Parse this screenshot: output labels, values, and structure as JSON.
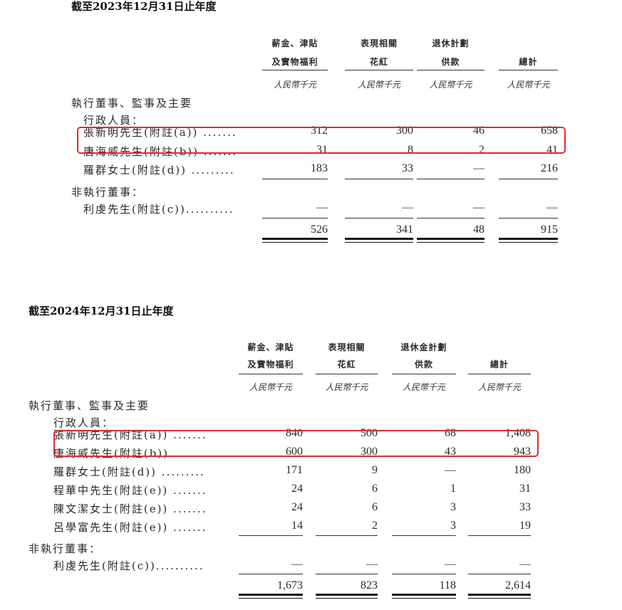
{
  "tables": [
    {
      "title": "截至2023年12月31日止年度",
      "headers": [
        {
          "line1": "薪金、津貼",
          "line2": "及實物福利"
        },
        {
          "line1": "表現相關",
          "line2": "花紅"
        },
        {
          "line1": "退休計劃",
          "line2": "供款"
        },
        {
          "line1": "",
          "line2": "總計"
        }
      ],
      "unit": "人民幣千元",
      "section_exec": "執行董事、監事及主要",
      "section_exec_sub": "行政人員：",
      "exec_rows": [
        {
          "name": "張新明先生(附註(a)) .......",
          "values": [
            "312",
            "300",
            "46",
            "658"
          ],
          "highlighted": true
        },
        {
          "name": "唐海威先生(附註(b)) .......",
          "values": [
            "31",
            "8",
            "2",
            "41"
          ]
        },
        {
          "name": "羅群女士(附註(d)) .........",
          "values": [
            "183",
            "33",
            "—",
            "216"
          ]
        }
      ],
      "section_nonexec": "非執行董事：",
      "nonexec_rows": [
        {
          "name": "利虔先生(附註(c))..........",
          "values": [
            "—",
            "—",
            "—",
            "—"
          ]
        }
      ],
      "totals": [
        "526",
        "341",
        "48",
        "915"
      ]
    },
    {
      "title": "截至2024年12月31日止年度",
      "headers": [
        {
          "line1": "薪金、津貼",
          "line2": "及實物福利"
        },
        {
          "line1": "表現相關",
          "line2": "花紅"
        },
        {
          "line1": "退休金計劃",
          "line2": "供款"
        },
        {
          "line1": "",
          "line2": "總計"
        }
      ],
      "unit": "人民幣千元",
      "section_exec": "執行董事、監事及主要",
      "section_exec_sub": "行政人員：",
      "exec_rows": [
        {
          "name": "張新明先生(附註(a)) .......",
          "values": [
            "840",
            "500",
            "68",
            "1,408"
          ],
          "highlighted": true
        },
        {
          "name": "唐海威先生(附註(b)) .......",
          "values": [
            "600",
            "300",
            "43",
            "943"
          ]
        },
        {
          "name": "羅群女士(附註(d)) .........",
          "values": [
            "171",
            "9",
            "—",
            "180"
          ]
        },
        {
          "name": "程華中先生(附註(e)) .......",
          "values": [
            "24",
            "6",
            "1",
            "31"
          ]
        },
        {
          "name": "陳文潔女士(附註(e)) .......",
          "values": [
            "24",
            "6",
            "3",
            "33"
          ]
        },
        {
          "name": "呂學富先生(附註(e)) .......",
          "values": [
            "14",
            "2",
            "3",
            "19"
          ]
        }
      ],
      "section_nonexec": "非執行董事：",
      "nonexec_rows": [
        {
          "name": "利虔先生(附註(c))..........",
          "values": [
            "—",
            "—",
            "—",
            "—"
          ]
        }
      ],
      "totals": [
        "1,673",
        "823",
        "118",
        "2,614"
      ]
    }
  ],
  "highlight_color": "#d9302c"
}
